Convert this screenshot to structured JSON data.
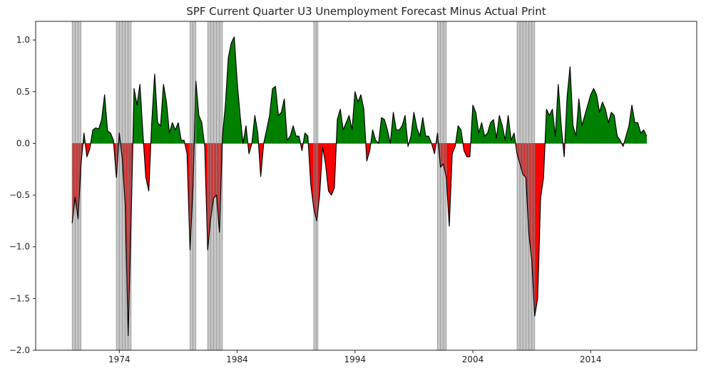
{
  "chart_data": {
    "type": "area",
    "title": "SPF Current Quarter U3 Unemployment Forecast Minus Actual Print",
    "xlabel": "",
    "ylabel": "",
    "xlim": [
      1966.9,
      2023.0
    ],
    "ylim": [
      -2.0,
      1.18
    ],
    "y_ticks": [
      1.0,
      0.5,
      0.0,
      -0.5,
      -1.0,
      -1.5,
      -2.0
    ],
    "y_tick_labels": [
      "1.0",
      "0.5",
      "0.0",
      "−0.5",
      "−1.0",
      "−1.5",
      "−2.0"
    ],
    "x_ticks": [
      1974,
      1984,
      1994,
      2004,
      2014
    ],
    "x_tick_labels": [
      "1974",
      "1984",
      "1994",
      "2004",
      "2014"
    ],
    "grid": false,
    "legend": false,
    "colors": {
      "positive_fill": "#008000",
      "negative_fill": "#ff0000",
      "line": "#000000",
      "recession_shade": "#808080"
    },
    "recessions": [
      {
        "start": 1970.0,
        "end": 1970.75
      },
      {
        "start": 1973.75,
        "end": 1975.0
      },
      {
        "start": 1980.0,
        "end": 1980.5
      },
      {
        "start": 1981.5,
        "end": 1982.75
      },
      {
        "start": 1990.5,
        "end": 1990.9
      },
      {
        "start": 2001.0,
        "end": 2001.75
      },
      {
        "start": 2007.75,
        "end": 2009.25
      }
    ],
    "series": [
      {
        "points": [
          [
            1970.0,
            -0.77
          ],
          [
            1970.25,
            -0.52
          ],
          [
            1970.5,
            -0.73
          ],
          [
            1970.75,
            -0.2
          ],
          [
            1971.0,
            0.1
          ],
          [
            1971.25,
            -0.13
          ],
          [
            1971.5,
            -0.05
          ],
          [
            1971.75,
            0.13
          ],
          [
            1972.0,
            0.15
          ],
          [
            1972.25,
            0.14
          ],
          [
            1972.5,
            0.23
          ],
          [
            1972.75,
            0.47
          ],
          [
            1973.0,
            0.12
          ],
          [
            1973.25,
            0.1
          ],
          [
            1973.5,
            0.03
          ],
          [
            1973.75,
            -0.33
          ],
          [
            1974.0,
            0.1
          ],
          [
            1974.25,
            -0.15
          ],
          [
            1974.5,
            -0.6
          ],
          [
            1974.75,
            -1.86
          ],
          [
            1975.0,
            -0.75
          ],
          [
            1975.25,
            0.53
          ],
          [
            1975.5,
            0.37
          ],
          [
            1975.75,
            0.57
          ],
          [
            1976.0,
            0.1
          ],
          [
            1976.25,
            -0.33
          ],
          [
            1976.5,
            -0.46
          ],
          [
            1976.75,
            0.2
          ],
          [
            1977.0,
            0.67
          ],
          [
            1977.25,
            0.2
          ],
          [
            1977.5,
            0.17
          ],
          [
            1977.75,
            0.57
          ],
          [
            1978.0,
            0.4
          ],
          [
            1978.25,
            0.1
          ],
          [
            1978.5,
            0.2
          ],
          [
            1978.75,
            0.13
          ],
          [
            1979.0,
            0.2
          ],
          [
            1979.25,
            0.03
          ],
          [
            1979.5,
            0.03
          ],
          [
            1979.75,
            -0.1
          ],
          [
            1980.0,
            -1.03
          ],
          [
            1980.25,
            -0.43
          ],
          [
            1980.5,
            0.6
          ],
          [
            1980.75,
            0.27
          ],
          [
            1981.0,
            0.2
          ],
          [
            1981.25,
            -0.03
          ],
          [
            1981.5,
            -1.03
          ],
          [
            1981.75,
            -0.73
          ],
          [
            1982.0,
            -0.53
          ],
          [
            1982.25,
            -0.5
          ],
          [
            1982.5,
            -0.86
          ],
          [
            1982.75,
            0.07
          ],
          [
            1983.0,
            0.37
          ],
          [
            1983.25,
            0.83
          ],
          [
            1983.5,
            0.97
          ],
          [
            1983.75,
            1.03
          ],
          [
            1984.0,
            0.6
          ],
          [
            1984.25,
            0.27
          ],
          [
            1984.5,
            0.0
          ],
          [
            1984.75,
            0.17
          ],
          [
            1985.0,
            -0.1
          ],
          [
            1985.25,
            0.0
          ],
          [
            1985.5,
            0.27
          ],
          [
            1985.75,
            0.1
          ],
          [
            1986.0,
            -0.32
          ],
          [
            1986.25,
            0.0
          ],
          [
            1986.5,
            0.13
          ],
          [
            1986.75,
            0.27
          ],
          [
            1987.0,
            0.53
          ],
          [
            1987.25,
            0.55
          ],
          [
            1987.5,
            0.27
          ],
          [
            1987.75,
            0.3
          ],
          [
            1988.0,
            0.43
          ],
          [
            1988.25,
            0.03
          ],
          [
            1988.5,
            0.07
          ],
          [
            1988.75,
            0.17
          ],
          [
            1989.0,
            0.07
          ],
          [
            1989.25,
            0.07
          ],
          [
            1989.5,
            -0.07
          ],
          [
            1989.75,
            0.1
          ],
          [
            1990.0,
            0.07
          ],
          [
            1990.25,
            -0.4
          ],
          [
            1990.5,
            -0.63
          ],
          [
            1990.75,
            -0.75
          ],
          [
            1991.0,
            -0.5
          ],
          [
            1991.25,
            -0.03
          ],
          [
            1991.5,
            -0.2
          ],
          [
            1991.75,
            -0.46
          ],
          [
            1992.0,
            -0.5
          ],
          [
            1992.25,
            -0.43
          ],
          [
            1992.5,
            0.23
          ],
          [
            1992.75,
            0.33
          ],
          [
            1993.0,
            0.13
          ],
          [
            1993.25,
            0.2
          ],
          [
            1993.5,
            0.27
          ],
          [
            1993.75,
            0.13
          ],
          [
            1994.0,
            0.5
          ],
          [
            1994.25,
            0.4
          ],
          [
            1994.5,
            0.47
          ],
          [
            1994.75,
            0.33
          ],
          [
            1995.0,
            -0.17
          ],
          [
            1995.25,
            -0.07
          ],
          [
            1995.5,
            0.13
          ],
          [
            1995.75,
            0.03
          ],
          [
            1996.0,
            0.0
          ],
          [
            1996.25,
            0.25
          ],
          [
            1996.5,
            0.23
          ],
          [
            1996.75,
            0.13
          ],
          [
            1997.0,
            0.0
          ],
          [
            1997.25,
            0.3
          ],
          [
            1997.5,
            0.13
          ],
          [
            1997.75,
            0.13
          ],
          [
            1998.0,
            0.17
          ],
          [
            1998.25,
            0.27
          ],
          [
            1998.5,
            -0.03
          ],
          [
            1998.75,
            0.07
          ],
          [
            1999.0,
            0.3
          ],
          [
            1999.25,
            0.15
          ],
          [
            1999.5,
            0.07
          ],
          [
            1999.75,
            0.25
          ],
          [
            2000.0,
            0.07
          ],
          [
            2000.25,
            0.07
          ],
          [
            2000.5,
            0.0
          ],
          [
            2000.75,
            -0.1
          ],
          [
            2001.0,
            0.1
          ],
          [
            2001.25,
            -0.23
          ],
          [
            2001.5,
            -0.2
          ],
          [
            2001.75,
            -0.33
          ],
          [
            2002.0,
            -0.8
          ],
          [
            2002.25,
            -0.1
          ],
          [
            2002.5,
            -0.03
          ],
          [
            2002.75,
            0.17
          ],
          [
            2003.0,
            0.13
          ],
          [
            2003.25,
            -0.07
          ],
          [
            2003.5,
            -0.13
          ],
          [
            2003.75,
            -0.13
          ],
          [
            2004.0,
            0.37
          ],
          [
            2004.25,
            0.3
          ],
          [
            2004.5,
            0.1
          ],
          [
            2004.75,
            0.2
          ],
          [
            2005.0,
            0.07
          ],
          [
            2005.25,
            0.1
          ],
          [
            2005.5,
            0.2
          ],
          [
            2005.75,
            0.23
          ],
          [
            2006.0,
            0.05
          ],
          [
            2006.25,
            0.27
          ],
          [
            2006.5,
            0.17
          ],
          [
            2006.75,
            0.03
          ],
          [
            2007.0,
            0.27
          ],
          [
            2007.25,
            0.03
          ],
          [
            2007.5,
            0.1
          ],
          [
            2007.75,
            -0.1
          ],
          [
            2008.0,
            -0.2
          ],
          [
            2008.25,
            -0.3
          ],
          [
            2008.5,
            -0.33
          ],
          [
            2008.75,
            -0.87
          ],
          [
            2009.0,
            -1.13
          ],
          [
            2009.25,
            -1.67
          ],
          [
            2009.5,
            -1.5
          ],
          [
            2009.75,
            -0.53
          ],
          [
            2010.0,
            -0.33
          ],
          [
            2010.25,
            0.33
          ],
          [
            2010.5,
            0.27
          ],
          [
            2010.75,
            0.33
          ],
          [
            2011.0,
            0.07
          ],
          [
            2011.25,
            0.57
          ],
          [
            2011.5,
            0.17
          ],
          [
            2011.75,
            -0.13
          ],
          [
            2012.0,
            0.45
          ],
          [
            2012.25,
            0.74
          ],
          [
            2012.5,
            0.17
          ],
          [
            2012.75,
            0.07
          ],
          [
            2013.0,
            0.43
          ],
          [
            2013.25,
            0.17
          ],
          [
            2013.5,
            0.27
          ],
          [
            2013.75,
            0.37
          ],
          [
            2014.0,
            0.47
          ],
          [
            2014.25,
            0.53
          ],
          [
            2014.5,
            0.47
          ],
          [
            2014.75,
            0.3
          ],
          [
            2015.0,
            0.4
          ],
          [
            2015.25,
            0.33
          ],
          [
            2015.5,
            0.2
          ],
          [
            2015.75,
            0.3
          ],
          [
            2016.0,
            0.27
          ],
          [
            2016.25,
            0.07
          ],
          [
            2016.5,
            0.03
          ],
          [
            2016.75,
            -0.03
          ],
          [
            2017.0,
            0.07
          ],
          [
            2017.25,
            0.17
          ],
          [
            2017.5,
            0.37
          ],
          [
            2017.75,
            0.2
          ],
          [
            2018.0,
            0.2
          ],
          [
            2018.25,
            0.1
          ],
          [
            2018.5,
            0.13
          ],
          [
            2018.75,
            0.07
          ]
        ]
      }
    ]
  }
}
